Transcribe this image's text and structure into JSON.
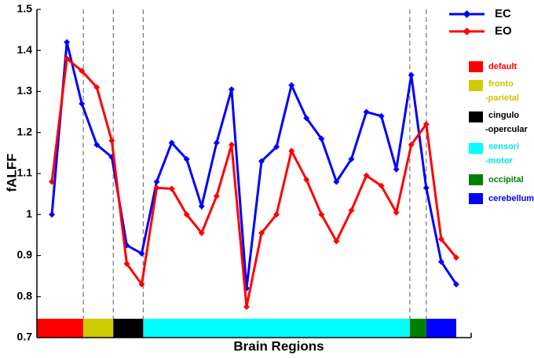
{
  "chart_data": {
    "type": "line",
    "x_label": "Brain Regions",
    "y_label": "fALFF",
    "x": [
      1,
      2,
      3,
      4,
      5,
      6,
      7,
      8,
      9,
      10,
      11,
      12,
      13,
      14,
      15,
      16,
      17,
      18,
      19,
      20,
      21,
      22,
      23,
      24,
      25,
      26,
      27,
      28
    ],
    "series": [
      {
        "name": "EC",
        "color": "#0000ff",
        "values": [
          1.0,
          1.42,
          1.27,
          1.17,
          1.14,
          0.925,
          0.905,
          1.08,
          1.175,
          1.135,
          1.02,
          1.175,
          1.305,
          0.82,
          1.13,
          1.165,
          1.315,
          1.235,
          1.185,
          1.08,
          1.135,
          1.25,
          1.24,
          1.11,
          1.34,
          1.065,
          0.885,
          0.83
        ]
      },
      {
        "name": "EO",
        "color": "#ff0000",
        "values": [
          1.08,
          1.38,
          1.35,
          1.31,
          1.18,
          0.88,
          0.83,
          1.065,
          1.063,
          1.0,
          0.955,
          1.045,
          1.17,
          0.775,
          0.955,
          1.0,
          1.155,
          1.085,
          1.0,
          0.935,
          1.01,
          1.095,
          1.07,
          1.005,
          1.17,
          1.22,
          0.94,
          0.895
        ]
      }
    ],
    "regions": [
      {
        "name": [
          "default"
        ],
        "color": "#ff0000",
        "text_color": "#ff0000",
        "start": 0,
        "end": 3.1
      },
      {
        "name": [
          "fronto",
          "-parietal"
        ],
        "color": "#cccc00",
        "text_color": "#c8c800",
        "start": 3.1,
        "end": 5.1
      },
      {
        "name": [
          "cingulo",
          "-opercular"
        ],
        "color": "#000000",
        "text_color": "#000000",
        "start": 5.1,
        "end": 7.1
      },
      {
        "name": [
          "sensori",
          "-motor"
        ],
        "color": "#00ffff",
        "text_color": "#00e5e5",
        "start": 7.1,
        "end": 24.9
      },
      {
        "name": [
          "occipital"
        ],
        "color": "#008000",
        "text_color": "#008000",
        "start": 24.9,
        "end": 26.0
      },
      {
        "name": [
          "cerebellum"
        ],
        "color": "#0000ff",
        "text_color": "#0000ff",
        "start": 26.0,
        "end": 28.0
      }
    ],
    "xlim": [
      0,
      29
    ],
    "ylim": [
      0.7,
      1.5
    ],
    "yticks": [
      0.7,
      0.8,
      0.9,
      1,
      1.1,
      1.2,
      1.3,
      1.4,
      1.5
    ]
  }
}
